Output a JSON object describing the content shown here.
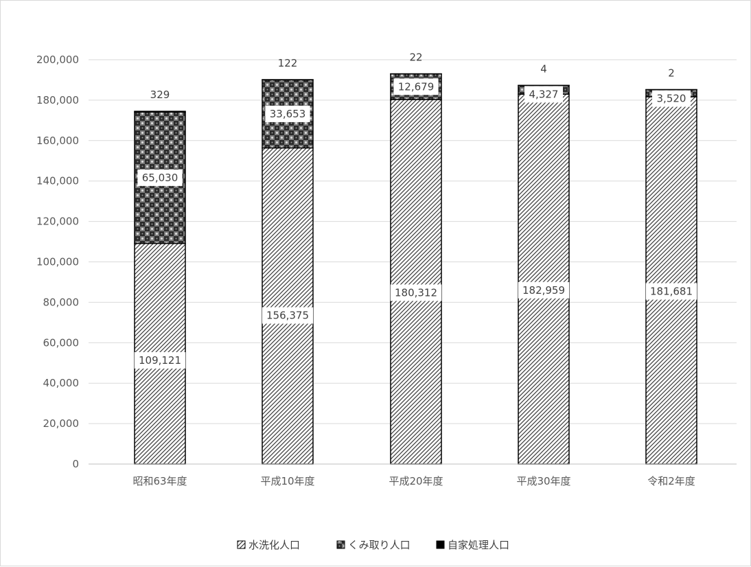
{
  "chart_data": {
    "type": "bar",
    "stacked": true,
    "title": "",
    "xlabel": "",
    "ylabel": "",
    "ylim": [
      0,
      200000
    ],
    "y_ticks": [
      "0",
      "20,000",
      "40,000",
      "60,000",
      "80,000",
      "100,000",
      "120,000",
      "140,000",
      "160,000",
      "180,000",
      "200,000"
    ],
    "grid": true,
    "legend_position": "bottom",
    "categories": [
      "昭和63年度",
      "平成10年度",
      "平成20年度",
      "平成30年度",
      "令和2年度"
    ],
    "series": [
      {
        "name": "水洗化人口",
        "pattern": "diagonal-hatch",
        "values": [
          109121,
          156375,
          180312,
          182959,
          181681
        ],
        "labels": [
          "109,121",
          "156,375",
          "180,312",
          "182,959",
          "181,681"
        ]
      },
      {
        "name": "くみ取り人口",
        "pattern": "dark-checker",
        "values": [
          65030,
          33653,
          12679,
          4327,
          3520
        ],
        "labels": [
          "65,030",
          "33,653",
          "12,679",
          "4,327",
          "3,520"
        ]
      },
      {
        "name": "自家処理人口",
        "pattern": "solid-black",
        "values": [
          329,
          122,
          22,
          4,
          2
        ],
        "labels": [
          "329",
          "122",
          "22",
          "4",
          "2"
        ]
      }
    ]
  }
}
